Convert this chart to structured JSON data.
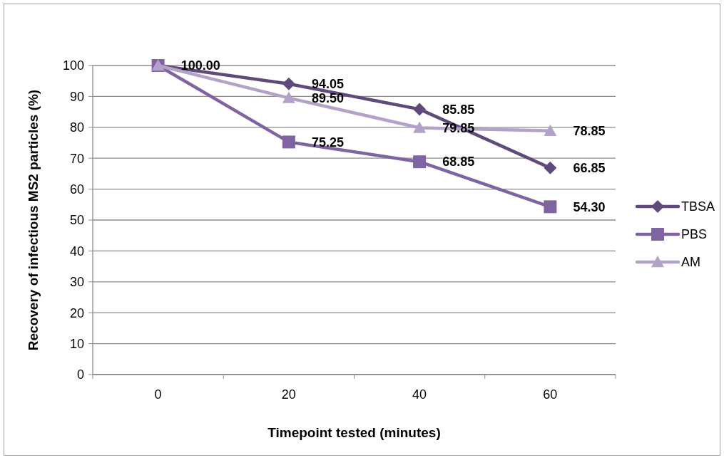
{
  "chart_data": {
    "type": "line",
    "xlabel": "Timepoint tested (minutes)",
    "ylabel": "Recovery of infectious MS2 particles (%)",
    "categories": [
      "0",
      "20",
      "40",
      "60"
    ],
    "ylim": [
      0,
      100
    ],
    "yticks": [
      0,
      10,
      20,
      30,
      40,
      50,
      60,
      70,
      80,
      90,
      100
    ],
    "grid": "y",
    "legend": "right",
    "series": [
      {
        "name": "TBSA",
        "color": "#604a7b",
        "marker": "diamond",
        "values": [
          100,
          94.05,
          85.85,
          66.85
        ],
        "value_labels": [
          "100.00",
          "94.05",
          "85.85",
          "66.85"
        ]
      },
      {
        "name": "PBS",
        "color": "#8064a2",
        "marker": "square",
        "values": [
          100,
          75.25,
          68.85,
          54.3
        ],
        "value_labels": [
          null,
          "75.25",
          "68.85",
          "54.30"
        ]
      },
      {
        "name": "AM",
        "color": "#b3a2c7",
        "marker": "triangle",
        "values": [
          100,
          89.5,
          79.85,
          78.85
        ],
        "value_labels": [
          null,
          "89.50",
          "79.85",
          "78.85"
        ]
      }
    ]
  }
}
